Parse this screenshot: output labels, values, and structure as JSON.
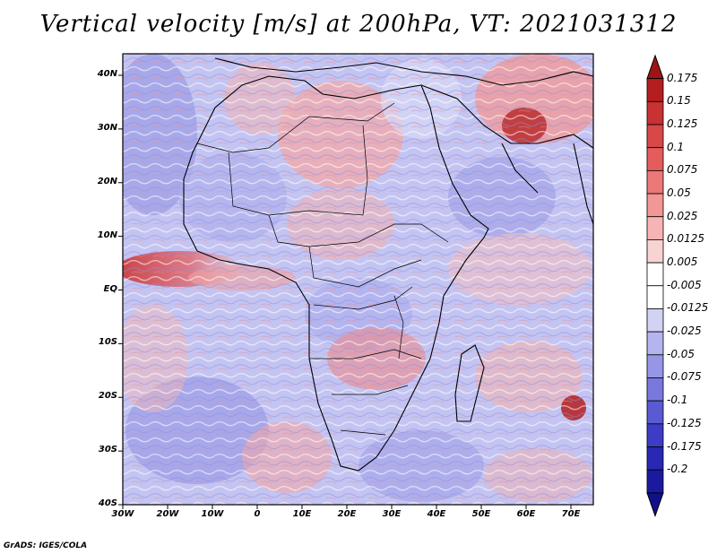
{
  "title": "Vertical velocity [m/s] at 200hPa, VT: 2021031312",
  "footer": "GrADS: IGES/COLA",
  "lat_labels": [
    "40N",
    "30N",
    "20N",
    "10N",
    "EQ",
    "10S",
    "20S",
    "30S",
    "40S"
  ],
  "lon_labels": [
    "30W",
    "20W",
    "10W",
    "0",
    "10E",
    "20E",
    "30E",
    "40E",
    "50E",
    "60E",
    "70E"
  ],
  "colorbar": {
    "labels": [
      "0.175",
      "0.15",
      "0.125",
      "0.1",
      "0.075",
      "0.05",
      "0.025",
      "0.0125",
      "0.005",
      "-0.005",
      "-0.0125",
      "-0.025",
      "-0.05",
      "-0.075",
      "-0.1",
      "-0.125",
      "-0.175",
      "-0.2"
    ],
    "colors": [
      "#b41e1e",
      "#c83232",
      "#d94747",
      "#e55c5c",
      "#ed7878",
      "#f29696",
      "#f6b4b4",
      "#f9d2d2",
      "#ffffff",
      "#ffffff",
      "#d2d2f5",
      "#b4b4ee",
      "#9696e6",
      "#7878dd",
      "#5a5ad2",
      "#3c3cc6",
      "#2828b4",
      "#1a1aa0"
    ]
  },
  "map": {
    "lon_range": [
      -30,
      75
    ],
    "lat_range": [
      -40,
      45
    ],
    "variable": "Vertical velocity",
    "units": "m/s",
    "level": "200hPa",
    "valid_time": "2021031312"
  }
}
